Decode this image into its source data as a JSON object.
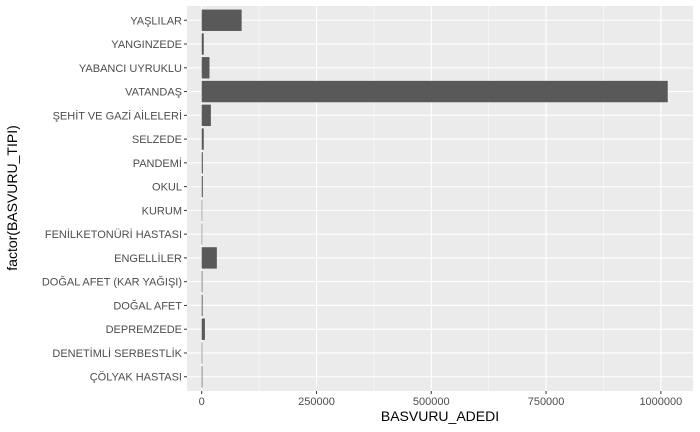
{
  "chart_data": {
    "type": "bar",
    "orientation": "horizontal",
    "xlabel": "BASVURU_ADEDI",
    "ylabel": "factor(BASVURU_TIPI)",
    "categories": [
      "ÇÖLYAK HASTASI",
      "DENETİMLİ SERBESTLİK",
      "DEPREMZEDE",
      "DOĞAL AFET",
      "DOĞAL AFET (KAR YAĞIŞI)",
      "ENGELLİLER",
      "FENİLKETONÜRİ HASTASI",
      "KURUM",
      "OKUL",
      "PANDEMİ",
      "SELZEDE",
      "ŞEHİT VE GAZİ AİLELERİ",
      "VATANDAŞ",
      "YABANCI UYRUKLU",
      "YANGINZEDE",
      "YAŞLILAR"
    ],
    "values": [
      1500,
      1200,
      7000,
      2000,
      1500,
      33000,
      400,
      300,
      2500,
      2500,
      4500,
      20000,
      1015000,
      17000,
      4500,
      87000
    ],
    "xlim": [
      -32000,
      1070000
    ],
    "xticks": [
      0,
      250000,
      500000,
      750000,
      1000000
    ],
    "xtick_labels": [
      "0",
      "250000",
      "500000",
      "750000",
      "1000000"
    ],
    "grid": true,
    "colors": {
      "panel": "#ebebeb",
      "grid_major": "#ffffff",
      "bar": "#595959",
      "tick_text": "#4d4d4d",
      "tick_mark": "#333333"
    }
  }
}
